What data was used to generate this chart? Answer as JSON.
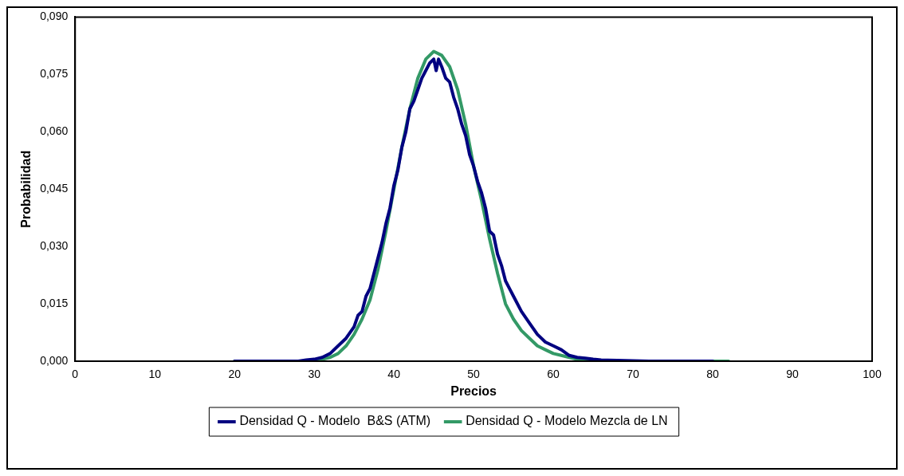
{
  "chart_data": {
    "type": "line",
    "xlabel": "Precios",
    "ylabel": "Probabilidad",
    "xlim": [
      0,
      100
    ],
    "xticks": [
      0,
      10,
      20,
      30,
      40,
      50,
      60,
      70,
      80,
      90,
      100
    ],
    "ylim": [
      0,
      0.09
    ],
    "yticks": [
      {
        "value": 0,
        "label": "0,000"
      },
      {
        "value": 0.015,
        "label": "0,015"
      },
      {
        "value": 0.03,
        "label": "0,030"
      },
      {
        "value": 0.045,
        "label": "0,045"
      },
      {
        "value": 0.06,
        "label": "0,060"
      },
      {
        "value": 0.075,
        "label": "0,075"
      },
      {
        "value": 0.09,
        "label": "0,090"
      }
    ],
    "grid": false,
    "legend": "bottom",
    "marker": "none",
    "line_style": "solid",
    "series": [
      {
        "name": "Densidad Q - Modelo  B&S (ATM)",
        "color": "#000080",
        "x": [
          20,
          22,
          24,
          26,
          28,
          29,
          30,
          31,
          32,
          33,
          34,
          35,
          35.5,
          36,
          36.5,
          37,
          37.5,
          38,
          38.5,
          39,
          39.5,
          40,
          40.5,
          41,
          41.5,
          42,
          42.5,
          43,
          43.5,
          44,
          44.5,
          45,
          45.3,
          45.6,
          46,
          46.5,
          47,
          47.5,
          48,
          48.5,
          49,
          49.5,
          50,
          50.5,
          51,
          51.5,
          52,
          52.5,
          53,
          53.5,
          54,
          54.5,
          55,
          56,
          57,
          58,
          59,
          60,
          61,
          62,
          63,
          64,
          65,
          66,
          68,
          70,
          72,
          75,
          80
        ],
        "values": [
          0,
          0,
          0,
          0,
          0,
          0.0003,
          0.0005,
          0.001,
          0.002,
          0.004,
          0.006,
          0.009,
          0.012,
          0.013,
          0.017,
          0.019,
          0.023,
          0.027,
          0.031,
          0.036,
          0.04,
          0.046,
          0.05,
          0.056,
          0.06,
          0.066,
          0.068,
          0.071,
          0.074,
          0.076,
          0.078,
          0.079,
          0.076,
          0.079,
          0.077,
          0.074,
          0.073,
          0.069,
          0.066,
          0.062,
          0.059,
          0.054,
          0.051,
          0.047,
          0.044,
          0.04,
          0.034,
          0.033,
          0.028,
          0.025,
          0.021,
          0.019,
          0.017,
          0.013,
          0.01,
          0.007,
          0.005,
          0.004,
          0.003,
          0.0015,
          0.001,
          0.0008,
          0.0005,
          0.0003,
          0.0002,
          0.0001,
          0,
          0,
          0
        ]
      },
      {
        "name": "Densidad Q - Modelo Mezcla de LN",
        "color": "#339966",
        "x": [
          20,
          25,
          30,
          31,
          32,
          33,
          34,
          35,
          36,
          37,
          38,
          39,
          40,
          41,
          42,
          43,
          44,
          45,
          46,
          47,
          48,
          49,
          50,
          51,
          52,
          53,
          54,
          55,
          56,
          57,
          58,
          59,
          60,
          61,
          62,
          63,
          64,
          66,
          70,
          75,
          82
        ],
        "values": [
          0,
          0,
          0,
          0.0005,
          0.001,
          0.002,
          0.004,
          0.007,
          0.011,
          0.016,
          0.024,
          0.034,
          0.045,
          0.056,
          0.066,
          0.074,
          0.079,
          0.081,
          0.08,
          0.077,
          0.071,
          0.062,
          0.051,
          0.042,
          0.032,
          0.023,
          0.015,
          0.011,
          0.008,
          0.006,
          0.004,
          0.003,
          0.002,
          0.0015,
          0.001,
          0.0005,
          0,
          0,
          0,
          0,
          0
        ]
      }
    ]
  }
}
